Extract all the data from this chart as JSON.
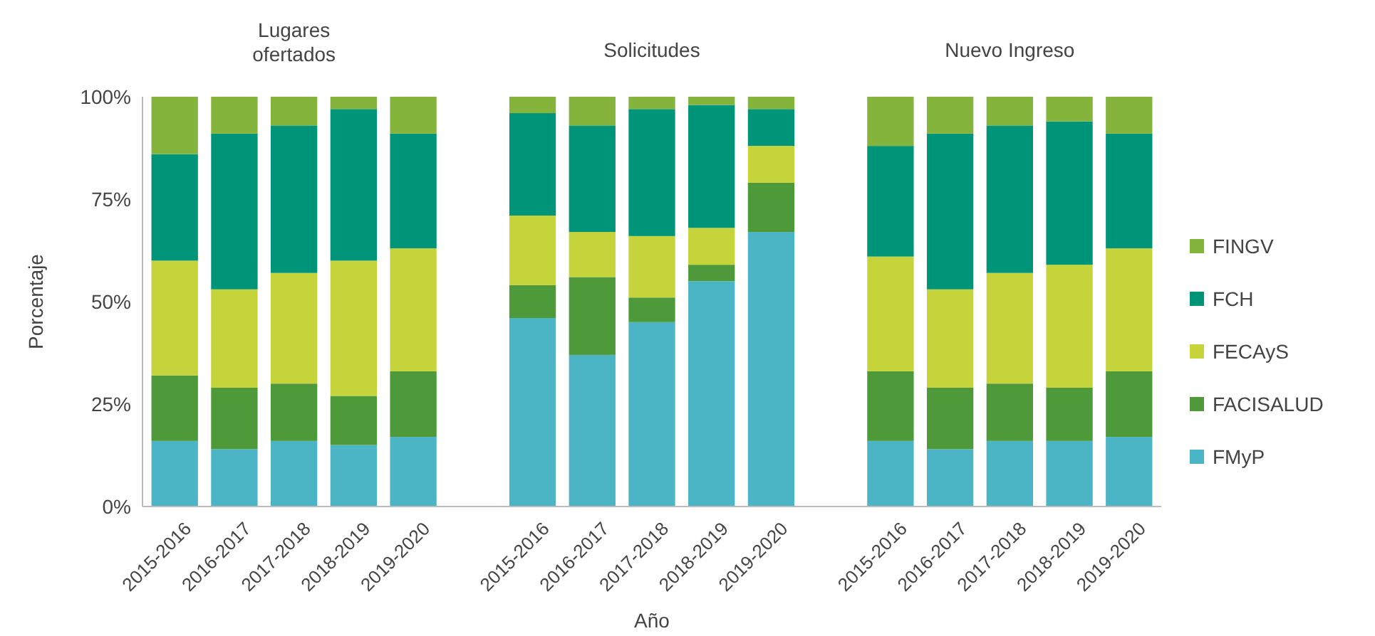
{
  "chart_data": {
    "type": "bar",
    "stacked": true,
    "ylabel": "Porcentaje",
    "xlabel": "Año",
    "annotations": [
      "Lugares ofertados",
      "Solicitudes",
      "Nuevo Ingreso"
    ],
    "categories": [
      "2015-2016",
      "2016-2017",
      "2017-2018",
      "2018-2019",
      "2019-2020",
      null,
      "2015-2016",
      "2016-2017",
      "2017-2018",
      "2018-2019",
      "2019-2020",
      null,
      "2015-2016",
      "2016-2017",
      "2017-2018",
      "2018-2019",
      "2019-2020"
    ],
    "series": [
      {
        "name": "FMyP",
        "color": "#4bb5c5",
        "values": [
          16,
          14,
          16,
          15,
          17,
          null,
          46,
          37,
          45,
          55,
          67,
          null,
          16,
          14,
          16,
          16,
          17
        ]
      },
      {
        "name": "FACISALUD",
        "color": "#4e9a3a",
        "values": [
          16,
          15,
          14,
          12,
          16,
          null,
          8,
          19,
          6,
          4,
          12,
          null,
          17,
          15,
          14,
          13,
          16
        ]
      },
      {
        "name": "FECAyS",
        "color": "#c5d43a",
        "values": [
          28,
          24,
          27,
          33,
          30,
          null,
          17,
          11,
          15,
          9,
          9,
          null,
          28,
          24,
          27,
          30,
          30
        ]
      },
      {
        "name": "FCH",
        "color": "#009479",
        "values": [
          26,
          38,
          36,
          37,
          28,
          null,
          25,
          26,
          31,
          30,
          9,
          null,
          27,
          38,
          36,
          35,
          28
        ]
      },
      {
        "name": "FINGV",
        "color": "#84b43c",
        "values": [
          14,
          9,
          7,
          3,
          9,
          null,
          4,
          7,
          3,
          2,
          3,
          null,
          12,
          9,
          7,
          6,
          9
        ]
      }
    ],
    "ylim": [
      0,
      100
    ],
    "yticks": [
      {
        "value": 0,
        "label": "0%"
      },
      {
        "value": 25,
        "label": "25%"
      },
      {
        "value": 50,
        "label": "50%"
      },
      {
        "value": 75,
        "label": "75%"
      },
      {
        "value": 100,
        "label": "100%"
      }
    ],
    "legend": "right"
  }
}
